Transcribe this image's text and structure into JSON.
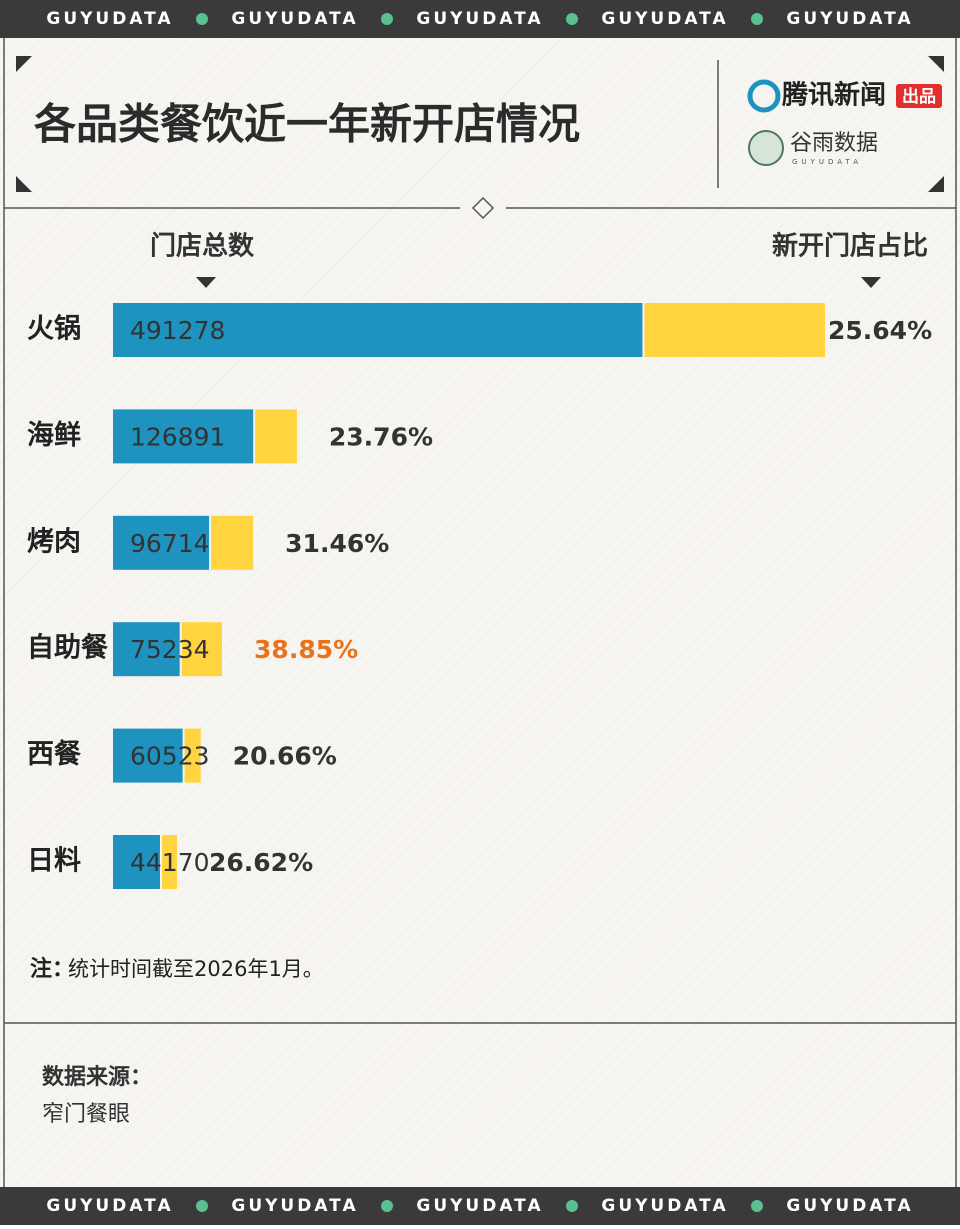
{
  "brand": "GUYUDATA",
  "logo_1": "腾讯新闻",
  "logo_1_tag": "出品",
  "logo_2": "谷雨数据",
  "logo_2_sub": "GUYUDATA",
  "chart_data": {
    "type": "bar",
    "title": "各品类餐饮近一年新开店情况",
    "categories": [
      "火锅",
      "海鲜",
      "烤肉",
      "自助餐",
      "西餐",
      "日料"
    ],
    "series": [
      {
        "name": "门店总数",
        "color": "#1f93c0",
        "values": [
          491278,
          126891,
          96714,
          75234,
          60523,
          44170
        ]
      },
      {
        "name": "新开门店占比",
        "color": "#ffd43f",
        "values": [
          25.64,
          23.76,
          31.46,
          38.85,
          20.66,
          26.62
        ],
        "value_labels": [
          "25.64%",
          "23.76%",
          "31.46%",
          "38.85%",
          "20.66%",
          "26.62%"
        ],
        "label_colors": [
          "#333333",
          "#333333",
          "#333333",
          "#e8731a",
          "#333333",
          "#333333"
        ]
      }
    ]
  },
  "note_label": "注：",
  "note": "统计时间截至2026年1月。",
  "source_label": "数据来源：",
  "source": "窄门餐眼"
}
